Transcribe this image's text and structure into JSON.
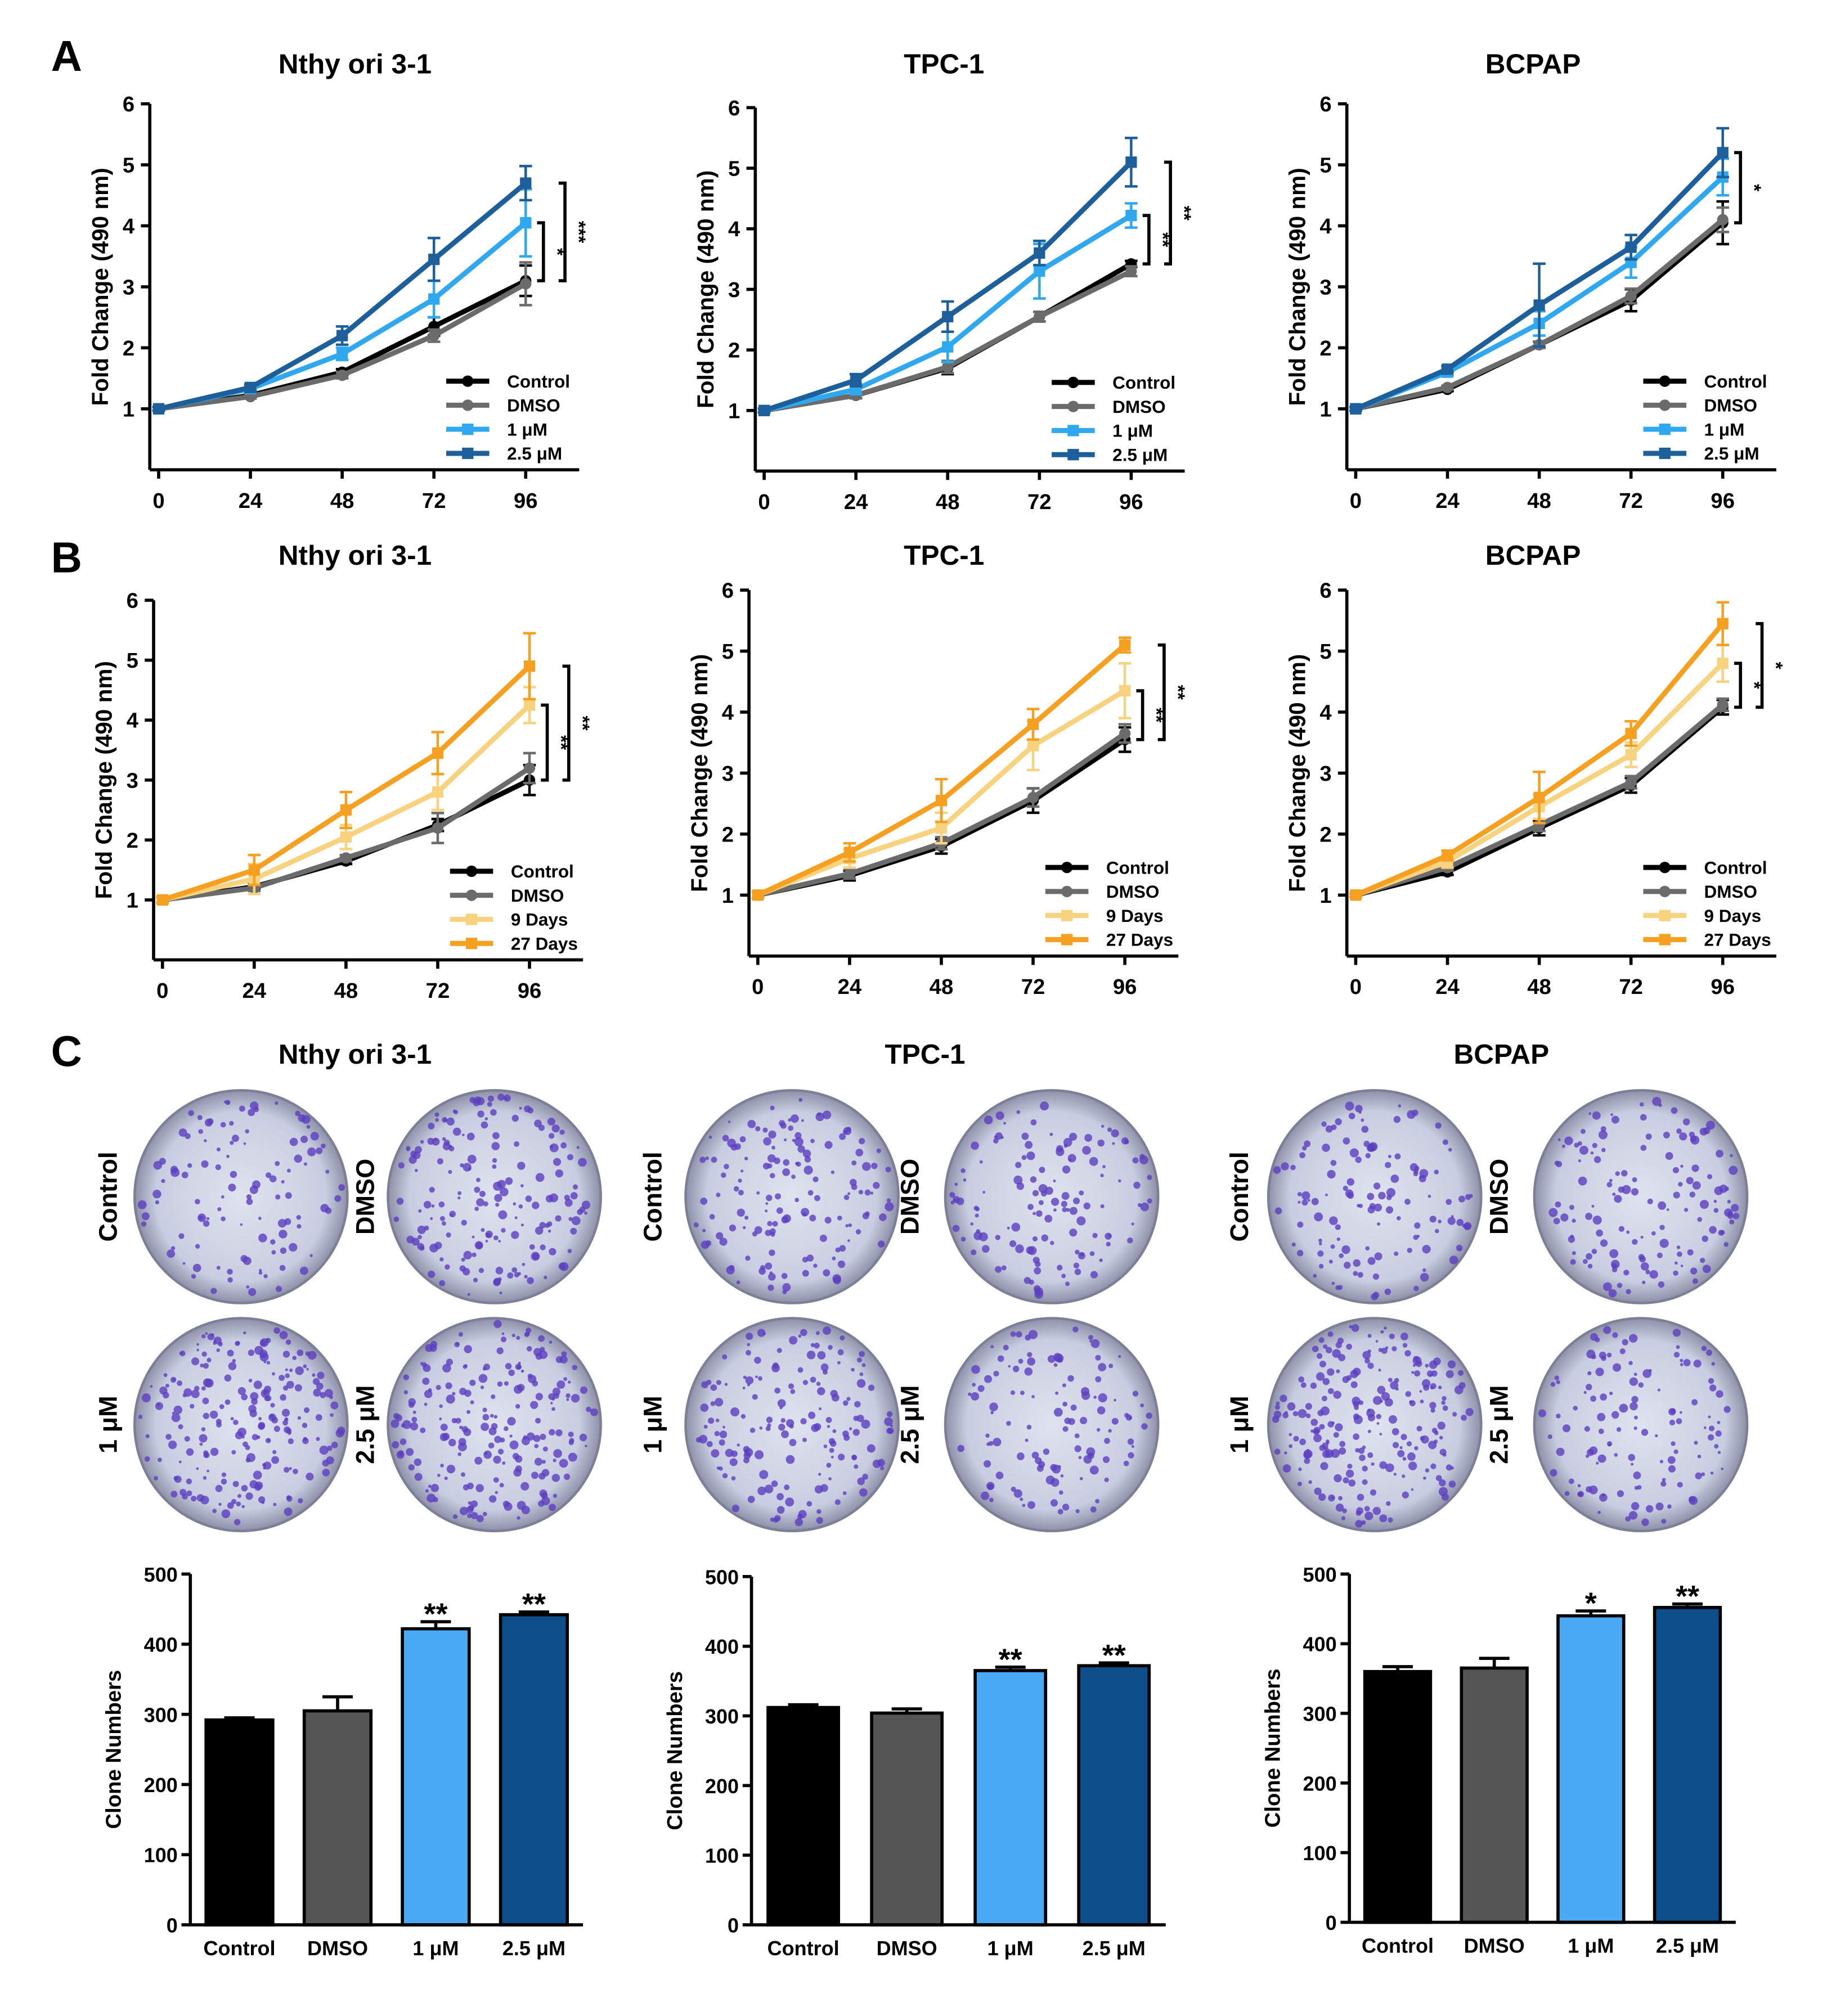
{
  "panel_labels": [
    "A",
    "B",
    "C"
  ],
  "chart_data": [
    {
      "type": "line",
      "title": "Nthy ori 3-1",
      "ylabel": "Fold Change (490 nm)",
      "x": [
        0,
        24,
        48,
        72,
        96
      ],
      "xlim": [
        0,
        110
      ],
      "xticks": [
        0,
        24,
        48,
        72,
        96
      ],
      "ylim": [
        0,
        6
      ],
      "yticks": [
        1,
        2,
        3,
        4,
        5,
        6
      ],
      "legend": "lower right",
      "series": [
        {
          "name": "Control",
          "color": "#000000",
          "marker": "circle",
          "values": [
            1,
            1.22,
            1.6,
            2.35,
            3.1
          ],
          "errors": [
            0.03,
            0.03,
            0.05,
            0.15,
            0.25
          ]
        },
        {
          "name": "DMSO",
          "color": "#6b6b6b",
          "marker": "circle",
          "values": [
            1,
            1.2,
            1.55,
            2.2,
            3.05
          ],
          "errors": [
            0.03,
            0.03,
            0.05,
            0.1,
            0.35
          ]
        },
        {
          "name": "1 μM",
          "color": "#2fa8ef",
          "marker": "square",
          "values": [
            1,
            1.33,
            1.9,
            2.8,
            4.05
          ],
          "errors": [
            0.03,
            0.05,
            0.1,
            0.3,
            0.55
          ]
        },
        {
          "name": "2.5 μM",
          "color": "#1c5f9a",
          "marker": "square",
          "values": [
            1,
            1.35,
            2.2,
            3.45,
            4.7
          ],
          "errors": [
            0.03,
            0.05,
            0.15,
            0.35,
            0.28
          ]
        }
      ],
      "annotations": [
        {
          "text": "*",
          "y": [
            3.1,
            4.05
          ]
        },
        {
          "text": "***",
          "y": [
            3.1,
            4.7
          ]
        }
      ]
    },
    {
      "type": "line",
      "title": "TPC-1",
      "ylabel": "Fold Change (490 nm)",
      "x": [
        0,
        24,
        48,
        72,
        96
      ],
      "xlim": [
        0,
        110
      ],
      "xticks": [
        0,
        24,
        48,
        72,
        96
      ],
      "ylim": [
        0,
        6
      ],
      "yticks": [
        1,
        2,
        3,
        4,
        5,
        6
      ],
      "legend": "lower right",
      "series": [
        {
          "name": "Control",
          "color": "#000000",
          "marker": "circle",
          "values": [
            1,
            1.25,
            1.7,
            2.55,
            3.42
          ],
          "errors": [
            0.03,
            0.05,
            0.1,
            0.08,
            0.05
          ]
        },
        {
          "name": "DMSO",
          "color": "#6b6b6b",
          "marker": "circle",
          "values": [
            1,
            1.25,
            1.72,
            2.55,
            3.3
          ],
          "errors": [
            0.03,
            0.05,
            0.1,
            0.08,
            0.08
          ]
        },
        {
          "name": "1 μM",
          "color": "#2fa8ef",
          "marker": "square",
          "values": [
            1,
            1.35,
            2.05,
            3.3,
            4.22
          ],
          "errors": [
            0.03,
            0.08,
            0.25,
            0.45,
            0.2
          ]
        },
        {
          "name": "2.5 μM",
          "color": "#1c5f9a",
          "marker": "square",
          "values": [
            1,
            1.5,
            2.55,
            3.6,
            5.1
          ],
          "errors": [
            0.03,
            0.1,
            0.25,
            0.2,
            0.4
          ]
        }
      ],
      "annotations": [
        {
          "text": "**",
          "y": [
            3.42,
            4.22
          ]
        },
        {
          "text": "**",
          "y": [
            3.42,
            5.1
          ]
        }
      ]
    },
    {
      "type": "line",
      "title": "BCPAP",
      "ylabel": "Fold Change (490 nm)",
      "x": [
        0,
        24,
        48,
        72,
        96
      ],
      "xlim": [
        0,
        110
      ],
      "xticks": [
        0,
        24,
        48,
        72,
        96
      ],
      "ylim": [
        0,
        6
      ],
      "yticks": [
        1,
        2,
        3,
        4,
        5,
        6
      ],
      "legend": "lower right",
      "series": [
        {
          "name": "Control",
          "color": "#000000",
          "marker": "circle",
          "values": [
            1,
            1.32,
            2.05,
            2.78,
            4.05
          ],
          "errors": [
            0.03,
            0.03,
            0.05,
            0.18,
            0.35
          ]
        },
        {
          "name": "DMSO",
          "color": "#6b6b6b",
          "marker": "circle",
          "values": [
            1,
            1.35,
            2.05,
            2.85,
            4.1
          ],
          "errors": [
            0.03,
            0.03,
            0.05,
            0.12,
            0.2
          ]
        },
        {
          "name": "1 μM",
          "color": "#2fa8ef",
          "marker": "square",
          "values": [
            1,
            1.6,
            2.4,
            3.4,
            4.8
          ],
          "errors": [
            0.03,
            0.05,
            0.2,
            0.25,
            0.3
          ]
        },
        {
          "name": "2.5 μM",
          "color": "#1c5f9a",
          "marker": "square",
          "values": [
            1,
            1.65,
            2.7,
            3.65,
            5.2
          ],
          "errors": [
            0.03,
            0.05,
            0.68,
            0.2,
            0.4
          ]
        }
      ],
      "annotations": [
        {
          "text": "*",
          "y": [
            4.05,
            5.2
          ]
        }
      ]
    },
    {
      "type": "line",
      "title": "Nthy ori 3-1",
      "ylabel": "Fold Change (490 nm)",
      "x": [
        0,
        24,
        48,
        72,
        96
      ],
      "xlim": [
        0,
        110
      ],
      "xticks": [
        0,
        24,
        48,
        72,
        96
      ],
      "ylim": [
        0,
        6
      ],
      "yticks": [
        1,
        2,
        3,
        4,
        5,
        6
      ],
      "legend": "lower right",
      "series": [
        {
          "name": "Control",
          "color": "#000000",
          "marker": "circle",
          "values": [
            1,
            1.22,
            1.65,
            2.25,
            3.0
          ],
          "errors": [
            0.05,
            0.05,
            0.05,
            0.1,
            0.25
          ]
        },
        {
          "name": "DMSO",
          "color": "#6b6b6b",
          "marker": "circle",
          "values": [
            1,
            1.2,
            1.7,
            2.2,
            3.2
          ],
          "errors": [
            0.05,
            0.05,
            0.05,
            0.25,
            0.25
          ]
        },
        {
          "name": "9 Days",
          "color": "#f7d27f",
          "marker": "square",
          "values": [
            1,
            1.35,
            2.05,
            2.8,
            4.25
          ],
          "errors": [
            0.05,
            0.25,
            0.2,
            0.3,
            0.3
          ]
        },
        {
          "name": "27 Days",
          "color": "#f5a020",
          "marker": "square",
          "values": [
            1,
            1.5,
            2.5,
            3.45,
            4.9
          ],
          "errors": [
            0.05,
            0.25,
            0.3,
            0.35,
            0.55
          ]
        }
      ],
      "annotations": [
        {
          "text": "**",
          "y": [
            3.0,
            4.25
          ]
        },
        {
          "text": "**",
          "y": [
            3.0,
            4.9
          ]
        }
      ]
    },
    {
      "type": "line",
      "title": "TPC-1",
      "ylabel": "Fold Change (490 nm)",
      "x": [
        0,
        24,
        48,
        72,
        96
      ],
      "xlim": [
        0,
        110
      ],
      "xticks": [
        0,
        24,
        48,
        72,
        96
      ],
      "ylim": [
        0,
        6
      ],
      "yticks": [
        1,
        2,
        3,
        4,
        5,
        6
      ],
      "legend": "lower right",
      "series": [
        {
          "name": "Control",
          "color": "#000000",
          "marker": "circle",
          "values": [
            1,
            1.32,
            1.8,
            2.55,
            3.55
          ],
          "errors": [
            0.05,
            0.08,
            0.12,
            0.2,
            0.2
          ]
        },
        {
          "name": "DMSO",
          "color": "#6b6b6b",
          "marker": "circle",
          "values": [
            1,
            1.35,
            1.85,
            2.6,
            3.65
          ],
          "errors": [
            0.05,
            0.08,
            0.1,
            0.15,
            0.15
          ]
        },
        {
          "name": "9 Days",
          "color": "#f7d27f",
          "marker": "square",
          "values": [
            1,
            1.6,
            2.1,
            3.45,
            4.35
          ],
          "errors": [
            0.05,
            0.15,
            0.25,
            0.4,
            0.45
          ]
        },
        {
          "name": "27 Days",
          "color": "#f5a020",
          "marker": "square",
          "values": [
            1,
            1.7,
            2.55,
            3.8,
            5.1
          ],
          "errors": [
            0.05,
            0.15,
            0.35,
            0.25,
            0.12
          ]
        }
      ],
      "annotations": [
        {
          "text": "**",
          "y": [
            3.55,
            4.35
          ]
        },
        {
          "text": "**",
          "y": [
            3.55,
            5.1
          ]
        }
      ]
    },
    {
      "type": "line",
      "title": "BCPAP",
      "ylabel": "Fold Change (490 nm)",
      "x": [
        0,
        24,
        48,
        72,
        96
      ],
      "xlim": [
        0,
        110
      ],
      "xticks": [
        0,
        24,
        48,
        72,
        96
      ],
      "ylim": [
        0,
        6
      ],
      "yticks": [
        1,
        2,
        3,
        4,
        5,
        6
      ],
      "legend": "lower right",
      "series": [
        {
          "name": "Control",
          "color": "#000000",
          "marker": "circle",
          "values": [
            1,
            1.38,
            2.1,
            2.8,
            4.08
          ],
          "errors": [
            0.03,
            0.05,
            0.12,
            0.12,
            0.12
          ]
        },
        {
          "name": "DMSO",
          "color": "#6b6b6b",
          "marker": "circle",
          "values": [
            1,
            1.45,
            2.15,
            2.85,
            4.12
          ],
          "errors": [
            0.03,
            0.05,
            0.1,
            0.1,
            0.1
          ]
        },
        {
          "name": "9 Days",
          "color": "#f7d27f",
          "marker": "square",
          "values": [
            1,
            1.55,
            2.45,
            3.3,
            4.8
          ],
          "errors": [
            0.03,
            0.1,
            0.2,
            0.2,
            0.3
          ]
        },
        {
          "name": "27 Days",
          "color": "#f5a020",
          "marker": "square",
          "values": [
            1,
            1.65,
            2.6,
            3.65,
            5.45
          ],
          "errors": [
            0.03,
            0.08,
            0.42,
            0.2,
            0.35
          ]
        }
      ],
      "annotations": [
        {
          "text": "*",
          "y": [
            4.08,
            4.8
          ]
        },
        {
          "text": "*",
          "y": [
            4.08,
            5.45
          ]
        }
      ]
    },
    {
      "type": "bar",
      "ylabel": "Clone Numbers",
      "categories": [
        "Control",
        "DMSO",
        "1 μM",
        "2.5 μM"
      ],
      "values": [
        292,
        305,
        422,
        442
      ],
      "errors": [
        3,
        20,
        10,
        4
      ],
      "colors": [
        "#000000",
        "#555555",
        "#4aa9f5",
        "#0d4f8a"
      ],
      "ylim": [
        0,
        500
      ],
      "yticks": [
        0,
        100,
        200,
        300,
        400,
        500
      ],
      "annotations": [
        {
          "index": 2,
          "text": "**"
        },
        {
          "index": 3,
          "text": "**"
        }
      ]
    },
    {
      "type": "bar",
      "ylabel": "Clone Numbers",
      "categories": [
        "Control",
        "DMSO",
        "1 μM",
        "2.5 μM"
      ],
      "values": [
        312,
        304,
        365,
        372
      ],
      "errors": [
        4,
        6,
        5,
        4
      ],
      "colors": [
        "#000000",
        "#555555",
        "#4aa9f5",
        "#0d4f8a"
      ],
      "ylim": [
        0,
        500
      ],
      "yticks": [
        0,
        100,
        200,
        300,
        400,
        500
      ],
      "annotations": [
        {
          "index": 2,
          "text": "**"
        },
        {
          "index": 3,
          "text": "**"
        }
      ]
    },
    {
      "type": "bar",
      "ylabel": "Clone Numbers",
      "categories": [
        "Control",
        "DMSO",
        "1 μM",
        "2.5 μM"
      ],
      "values": [
        360,
        365,
        440,
        452
      ],
      "errors": [
        7,
        14,
        7,
        5
      ],
      "colors": [
        "#000000",
        "#555555",
        "#4aa9f5",
        "#0d4f8a"
      ],
      "ylim": [
        0,
        500
      ],
      "yticks": [
        0,
        100,
        200,
        300,
        400,
        500
      ],
      "annotations": [
        {
          "index": 2,
          "text": "*"
        },
        {
          "index": 3,
          "text": "**"
        }
      ]
    }
  ],
  "plates": [
    {
      "title": "Nthy ori 3-1",
      "labels": [
        "Control",
        "DMSO",
        "1 μM",
        "2.5 μM"
      ]
    },
    {
      "title": "TPC-1",
      "labels": [
        "Control",
        "DMSO",
        "1 μM",
        "2.5 μM"
      ]
    },
    {
      "title": "BCPAP",
      "labels": [
        "Control",
        "DMSO",
        "1 μM",
        "2.5 μM"
      ]
    }
  ]
}
